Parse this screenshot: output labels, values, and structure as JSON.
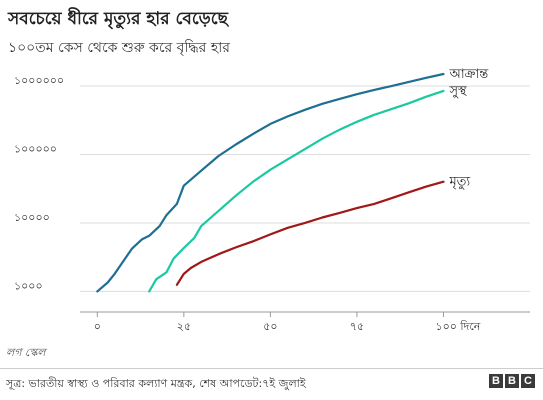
{
  "chart_data": {
    "type": "line",
    "title": "সবচেয়ে ধীরে মৃত্যুর হার বেড়েছে",
    "subtitle": "১০০তম কেস থেকে শুরু করে বৃদ্ধির হার",
    "xlabel": "",
    "ylabel": "",
    "xlim": [
      -5,
      125
    ],
    "ylim": [
      500,
      1500000
    ],
    "y_scale": "log",
    "grid": "horizontal",
    "x_ticks": [
      {
        "value": 0,
        "label": "০"
      },
      {
        "value": 25,
        "label": "২৫"
      },
      {
        "value": 50,
        "label": "৫০"
      },
      {
        "value": 75,
        "label": "৭৫"
      },
      {
        "value": 100,
        "label": "১০০ দিনে"
      }
    ],
    "y_ticks": [
      {
        "value": 1000,
        "label": "১০০০"
      },
      {
        "value": 10000,
        "label": "১০০০০"
      },
      {
        "value": 100000,
        "label": "১০০০০০"
      },
      {
        "value": 1000000,
        "label": "১০০০০০০"
      }
    ],
    "series": [
      {
        "name": "আক্রান্ত",
        "color": "#1d6f93",
        "x": [
          0,
          3,
          5,
          8,
          10,
          13,
          15,
          18,
          20,
          23,
          25,
          30,
          35,
          40,
          45,
          50,
          55,
          60,
          65,
          70,
          75,
          80,
          85,
          90,
          95,
          100
        ],
        "y": [
          1000,
          1350,
          1800,
          3000,
          4200,
          5800,
          6500,
          9000,
          13000,
          19000,
          35000,
          58000,
          95000,
          140000,
          200000,
          280000,
          360000,
          450000,
          550000,
          650000,
          760000,
          880000,
          1000000,
          1150000,
          1320000,
          1500000
        ]
      },
      {
        "name": "সুস্থ",
        "color": "#1ac9a0",
        "x": [
          15,
          17,
          20,
          22,
          25,
          28,
          30,
          35,
          40,
          45,
          50,
          55,
          60,
          65,
          70,
          75,
          80,
          85,
          90,
          95,
          100
        ],
        "y": [
          1000,
          1500,
          1900,
          3000,
          4300,
          6000,
          9000,
          15000,
          25000,
          40000,
          60000,
          85000,
          120000,
          170000,
          230000,
          300000,
          380000,
          460000,
          560000,
          700000,
          850000
        ]
      },
      {
        "name": "মৃত্যু",
        "color": "#a01818",
        "x": [
          23,
          25,
          27,
          30,
          35,
          40,
          45,
          50,
          55,
          60,
          65,
          70,
          75,
          80,
          85,
          90,
          95,
          100
        ],
        "y": [
          1250,
          1800,
          2200,
          2700,
          3500,
          4400,
          5400,
          6800,
          8500,
          10000,
          12000,
          14000,
          16500,
          19000,
          23000,
          28000,
          34000,
          40000
        ]
      }
    ],
    "scale_note": "লগ স্কেল"
  },
  "footer": {
    "source": "সূত্র: ভারতীয় স্বাস্থ্য ও পরিবার কল্যাণ মন্ত্রক, শেষ আপডেট:৭ই জুলাই",
    "brand_letters": [
      "B",
      "B",
      "C"
    ]
  }
}
